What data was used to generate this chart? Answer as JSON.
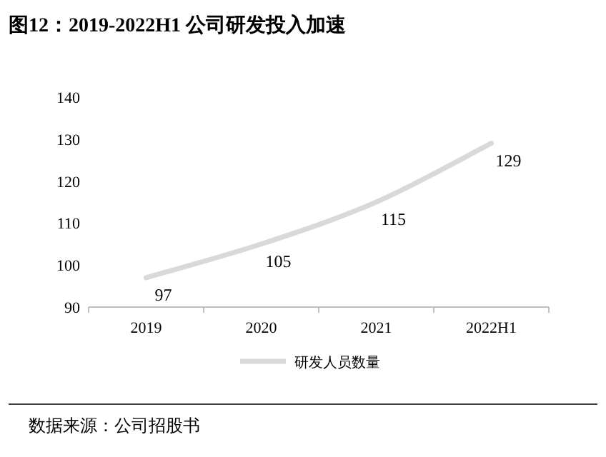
{
  "chart_data": {
    "type": "line",
    "title": "图12：2019-2022H1 公司研发投入加速",
    "categories": [
      "2019",
      "2020",
      "2021",
      "2022H1"
    ],
    "series": [
      {
        "name": "研发人员数量",
        "color": "#d9d9d9",
        "values": [
          97,
          105,
          115,
          129
        ]
      }
    ],
    "ylim": [
      90,
      140
    ],
    "yticks": [
      90,
      100,
      110,
      120,
      130,
      140
    ],
    "data_labels": true,
    "legend": "bottom",
    "grid": false,
    "annotations": [
      "数据来源：公司招股书"
    ]
  }
}
